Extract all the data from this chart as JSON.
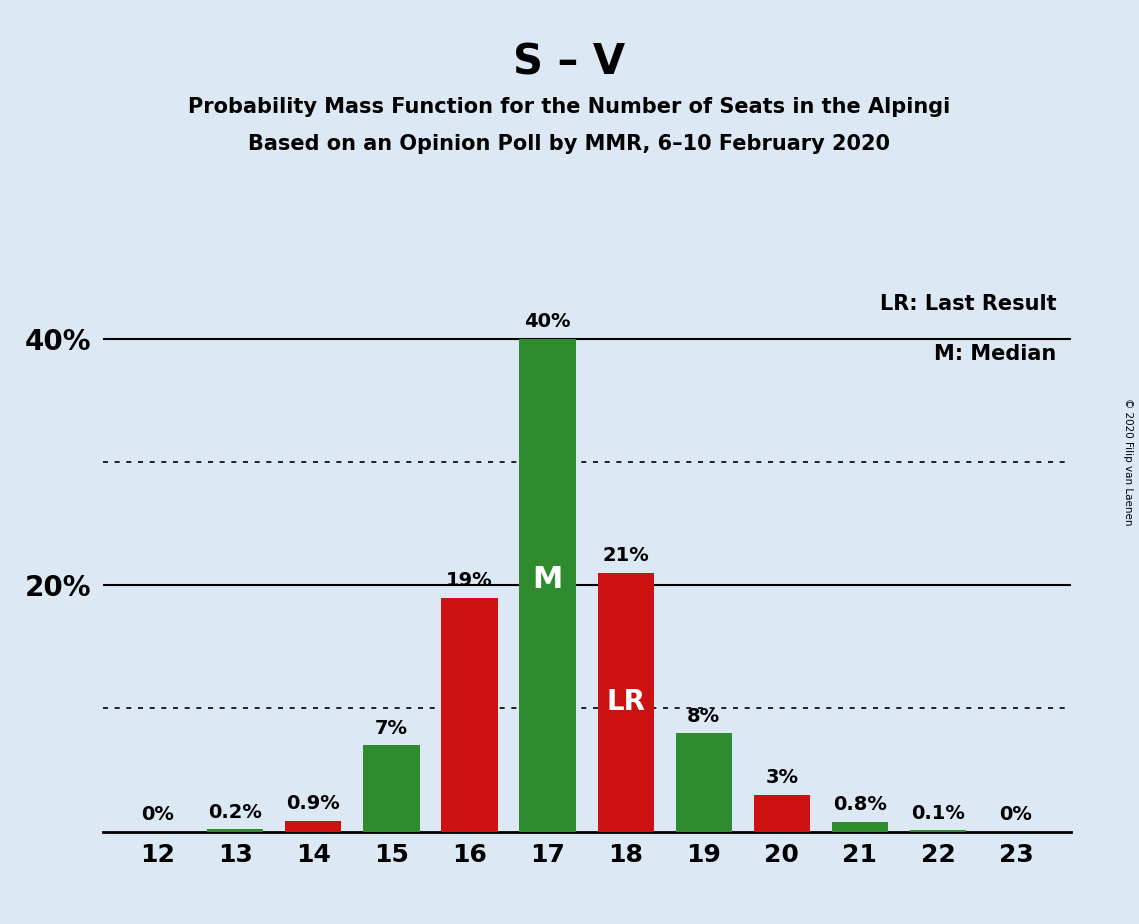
{
  "title": "S – V",
  "subtitle1": "Probability Mass Function for the Number of Seats in the Alpingi",
  "subtitle2": "Based on an Opinion Poll by MMR, 6–10 February 2020",
  "copyright": "© 2020 Filip van Laenen",
  "legend_lr": "LR: Last Result",
  "legend_m": "M: Median",
  "seats": [
    12,
    13,
    14,
    15,
    16,
    17,
    18,
    19,
    20,
    21,
    22,
    23
  ],
  "probabilities": [
    0.0,
    0.2,
    0.9,
    7.0,
    19.0,
    40.0,
    21.0,
    8.0,
    3.0,
    0.8,
    0.1,
    0.0
  ],
  "bar_colors": [
    "#2e8b2e",
    "#2e8b2e",
    "#cc1111",
    "#2e8b2e",
    "#cc1111",
    "#2e8b2e",
    "#cc1111",
    "#2e8b2e",
    "#cc1111",
    "#2e8b2e",
    "#2e8b2e",
    "#2e8b2e"
  ],
  "label_texts": [
    "0%",
    "0.2%",
    "0.9%",
    "7%",
    "19%",
    "40%",
    "21%",
    "8%",
    "3%",
    "0.8%",
    "0.1%",
    "0%"
  ],
  "median_seat": 17,
  "lr_seat": 18,
  "median_label": "M",
  "lr_label": "LR",
  "background_color": "#dce9f5",
  "title_fontsize": 30,
  "subtitle_fontsize": 15,
  "ylim": [
    0,
    45
  ],
  "yticks_labeled": [
    20,
    40
  ],
  "ytick_labels": [
    "20%",
    "40%"
  ],
  "dotted_yticks": [
    10,
    30
  ],
  "solid_yticks": [
    20,
    40
  ],
  "bar_width": 0.72
}
